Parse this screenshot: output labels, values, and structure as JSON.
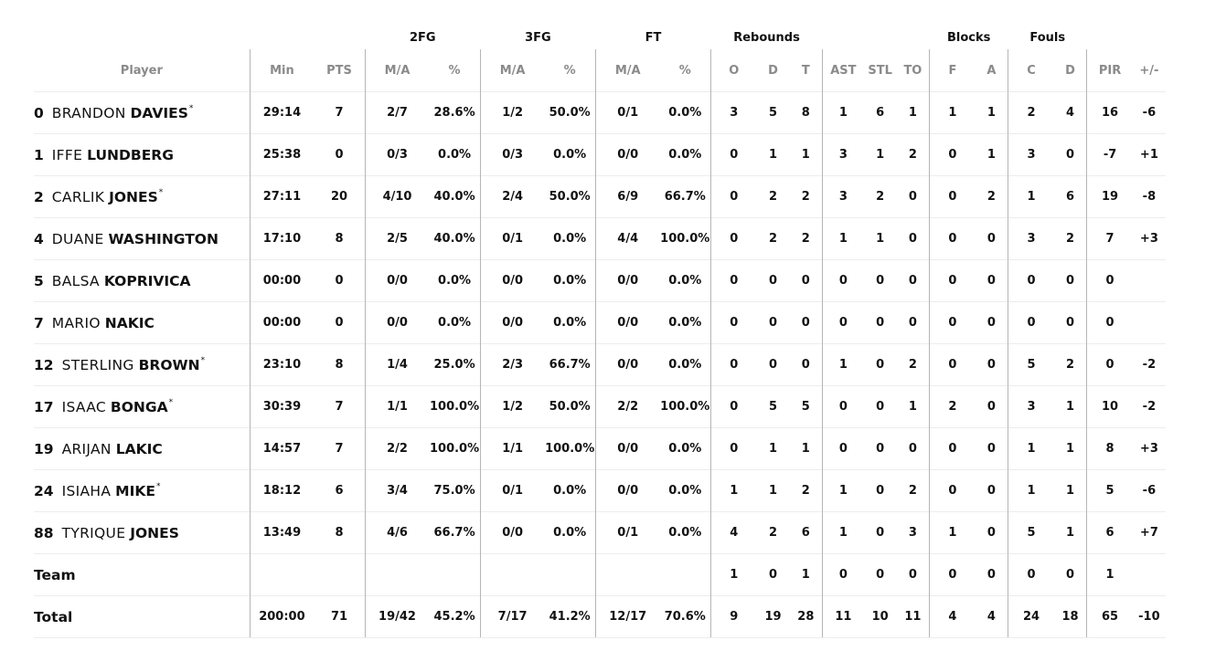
{
  "groups": {
    "fg2": "2FG",
    "fg3": "3FG",
    "ft": "FT",
    "rebounds": "Rebounds",
    "blocks": "Blocks",
    "fouls": "Fouls"
  },
  "headers": {
    "player": "Player",
    "min": "Min",
    "pts": "PTS",
    "fg2_ma": "M/A",
    "fg2_pct": "%",
    "fg3_ma": "M/A",
    "fg3_pct": "%",
    "ft_ma": "M/A",
    "ft_pct": "%",
    "o": "O",
    "d": "D",
    "t": "T",
    "ast": "AST",
    "stl": "STL",
    "to": "TO",
    "bf": "F",
    "ba": "A",
    "fc": "C",
    "fd": "D",
    "pir": "PIR",
    "pm": "+/-"
  },
  "players": [
    {
      "num": "0",
      "first": "BRANDON",
      "last": "DAVIES",
      "starter": true,
      "min": "29:14",
      "pts": "7",
      "fg2": "2/7",
      "fg2p": "28.6%",
      "fg3": "1/2",
      "fg3p": "50.0%",
      "ft": "0/1",
      "ftp": "0.0%",
      "o": "3",
      "d": "5",
      "t": "8",
      "ast": "1",
      "stl": "6",
      "to": "1",
      "bf": "1",
      "ba": "1",
      "fc": "2",
      "fd": "4",
      "pir": "16",
      "pm": "-6"
    },
    {
      "num": "1",
      "first": "IFFE",
      "last": "LUNDBERG",
      "starter": false,
      "min": "25:38",
      "pts": "0",
      "fg2": "0/3",
      "fg2p": "0.0%",
      "fg3": "0/3",
      "fg3p": "0.0%",
      "ft": "0/0",
      "ftp": "0.0%",
      "o": "0",
      "d": "1",
      "t": "1",
      "ast": "3",
      "stl": "1",
      "to": "2",
      "bf": "0",
      "ba": "1",
      "fc": "3",
      "fd": "0",
      "pir": "-7",
      "pm": "+1"
    },
    {
      "num": "2",
      "first": "CARLIK",
      "last": "JONES",
      "starter": true,
      "min": "27:11",
      "pts": "20",
      "fg2": "4/10",
      "fg2p": "40.0%",
      "fg3": "2/4",
      "fg3p": "50.0%",
      "ft": "6/9",
      "ftp": "66.7%",
      "o": "0",
      "d": "2",
      "t": "2",
      "ast": "3",
      "stl": "2",
      "to": "0",
      "bf": "0",
      "ba": "2",
      "fc": "1",
      "fd": "6",
      "pir": "19",
      "pm": "-8"
    },
    {
      "num": "4",
      "first": "DUANE",
      "last": "WASHINGTON",
      "starter": false,
      "min": "17:10",
      "pts": "8",
      "fg2": "2/5",
      "fg2p": "40.0%",
      "fg3": "0/1",
      "fg3p": "0.0%",
      "ft": "4/4",
      "ftp": "100.0%",
      "o": "0",
      "d": "2",
      "t": "2",
      "ast": "1",
      "stl": "1",
      "to": "0",
      "bf": "0",
      "ba": "0",
      "fc": "3",
      "fd": "2",
      "pir": "7",
      "pm": "+3"
    },
    {
      "num": "5",
      "first": "BALSA",
      "last": "KOPRIVICA",
      "starter": false,
      "min": "00:00",
      "pts": "0",
      "fg2": "0/0",
      "fg2p": "0.0%",
      "fg3": "0/0",
      "fg3p": "0.0%",
      "ft": "0/0",
      "ftp": "0.0%",
      "o": "0",
      "d": "0",
      "t": "0",
      "ast": "0",
      "stl": "0",
      "to": "0",
      "bf": "0",
      "ba": "0",
      "fc": "0",
      "fd": "0",
      "pir": "0",
      "pm": ""
    },
    {
      "num": "7",
      "first": "MARIO",
      "last": "NAKIC",
      "starter": false,
      "min": "00:00",
      "pts": "0",
      "fg2": "0/0",
      "fg2p": "0.0%",
      "fg3": "0/0",
      "fg3p": "0.0%",
      "ft": "0/0",
      "ftp": "0.0%",
      "o": "0",
      "d": "0",
      "t": "0",
      "ast": "0",
      "stl": "0",
      "to": "0",
      "bf": "0",
      "ba": "0",
      "fc": "0",
      "fd": "0",
      "pir": "0",
      "pm": ""
    },
    {
      "num": "12",
      "first": "STERLING",
      "last": "BROWN",
      "starter": true,
      "min": "23:10",
      "pts": "8",
      "fg2": "1/4",
      "fg2p": "25.0%",
      "fg3": "2/3",
      "fg3p": "66.7%",
      "ft": "0/0",
      "ftp": "0.0%",
      "o": "0",
      "d": "0",
      "t": "0",
      "ast": "1",
      "stl": "0",
      "to": "2",
      "bf": "0",
      "ba": "0",
      "fc": "5",
      "fd": "2",
      "pir": "0",
      "pm": "-2"
    },
    {
      "num": "17",
      "first": "ISAAC",
      "last": "BONGA",
      "starter": true,
      "min": "30:39",
      "pts": "7",
      "fg2": "1/1",
      "fg2p": "100.0%",
      "fg3": "1/2",
      "fg3p": "50.0%",
      "ft": "2/2",
      "ftp": "100.0%",
      "o": "0",
      "d": "5",
      "t": "5",
      "ast": "0",
      "stl": "0",
      "to": "1",
      "bf": "2",
      "ba": "0",
      "fc": "3",
      "fd": "1",
      "pir": "10",
      "pm": "-2"
    },
    {
      "num": "19",
      "first": "ARIJAN",
      "last": "LAKIC",
      "starter": false,
      "min": "14:57",
      "pts": "7",
      "fg2": "2/2",
      "fg2p": "100.0%",
      "fg3": "1/1",
      "fg3p": "100.0%",
      "ft": "0/0",
      "ftp": "0.0%",
      "o": "0",
      "d": "1",
      "t": "1",
      "ast": "0",
      "stl": "0",
      "to": "0",
      "bf": "0",
      "ba": "0",
      "fc": "1",
      "fd": "1",
      "pir": "8",
      "pm": "+3"
    },
    {
      "num": "24",
      "first": "ISIAHA",
      "last": "MIKE",
      "starter": true,
      "min": "18:12",
      "pts": "6",
      "fg2": "3/4",
      "fg2p": "75.0%",
      "fg3": "0/1",
      "fg3p": "0.0%",
      "ft": "0/0",
      "ftp": "0.0%",
      "o": "1",
      "d": "1",
      "t": "2",
      "ast": "1",
      "stl": "0",
      "to": "2",
      "bf": "0",
      "ba": "0",
      "fc": "1",
      "fd": "1",
      "pir": "5",
      "pm": "-6"
    },
    {
      "num": "88",
      "first": "TYRIQUE",
      "last": "JONES",
      "starter": false,
      "min": "13:49",
      "pts": "8",
      "fg2": "4/6",
      "fg2p": "66.7%",
      "fg3": "0/0",
      "fg3p": "0.0%",
      "ft": "0/1",
      "ftp": "0.0%",
      "o": "4",
      "d": "2",
      "t": "6",
      "ast": "1",
      "stl": "0",
      "to": "3",
      "bf": "1",
      "ba": "0",
      "fc": "5",
      "fd": "1",
      "pir": "6",
      "pm": "+7"
    }
  ],
  "team": {
    "label": "Team",
    "min": "",
    "pts": "",
    "fg2": "",
    "fg2p": "",
    "fg3": "",
    "fg3p": "",
    "ft": "",
    "ftp": "",
    "o": "1",
    "d": "0",
    "t": "1",
    "ast": "0",
    "stl": "0",
    "to": "0",
    "bf": "0",
    "ba": "0",
    "fc": "0",
    "fd": "0",
    "pir": "1",
    "pm": ""
  },
  "total": {
    "label": "Total",
    "min": "200:00",
    "pts": "71",
    "fg2": "19/42",
    "fg2p": "45.2%",
    "fg3": "7/17",
    "fg3p": "41.2%",
    "ft": "12/17",
    "ftp": "70.6%",
    "o": "9",
    "d": "19",
    "t": "28",
    "ast": "11",
    "stl": "10",
    "to": "11",
    "bf": "4",
    "ba": "4",
    "fc": "24",
    "fd": "18",
    "pir": "65",
    "pm": "-10"
  }
}
